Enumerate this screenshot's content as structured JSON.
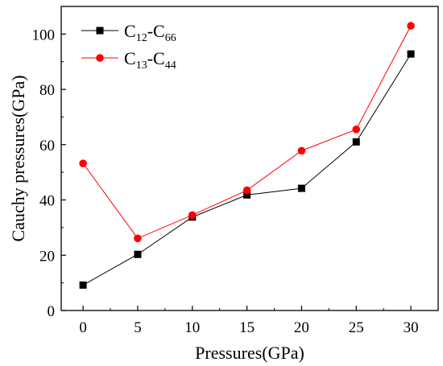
{
  "chart_data": {
    "type": "line",
    "xlabel": "Pressures(GPa)",
    "ylabel": "Cauchy pressures(GPa)",
    "x": [
      0,
      5,
      10,
      15,
      20,
      25,
      30
    ],
    "xticks": [
      "0",
      "5",
      "10",
      "15",
      "20",
      "25",
      "30"
    ],
    "xlim": [
      -2,
      32.5
    ],
    "ylim": [
      0,
      110
    ],
    "yticks": [
      0,
      20,
      40,
      60,
      80,
      100
    ],
    "grid": false,
    "legend_position": "top-left",
    "series": [
      {
        "name": "C12-C66",
        "label_main": "C",
        "label_sub1": "12",
        "label_mid": "-C",
        "label_sub2": "66",
        "color": "#000000",
        "marker": "square",
        "values": [
          9.2,
          20.3,
          33.8,
          41.8,
          44.2,
          61.0,
          92.8
        ]
      },
      {
        "name": "C13-C44",
        "label_main": "C",
        "label_sub1": "13",
        "label_mid": "-C",
        "label_sub2": "44",
        "color": "#ff0000",
        "marker": "circle",
        "values": [
          53.2,
          26.1,
          34.5,
          43.5,
          57.8,
          65.5,
          103.0
        ]
      }
    ]
  }
}
